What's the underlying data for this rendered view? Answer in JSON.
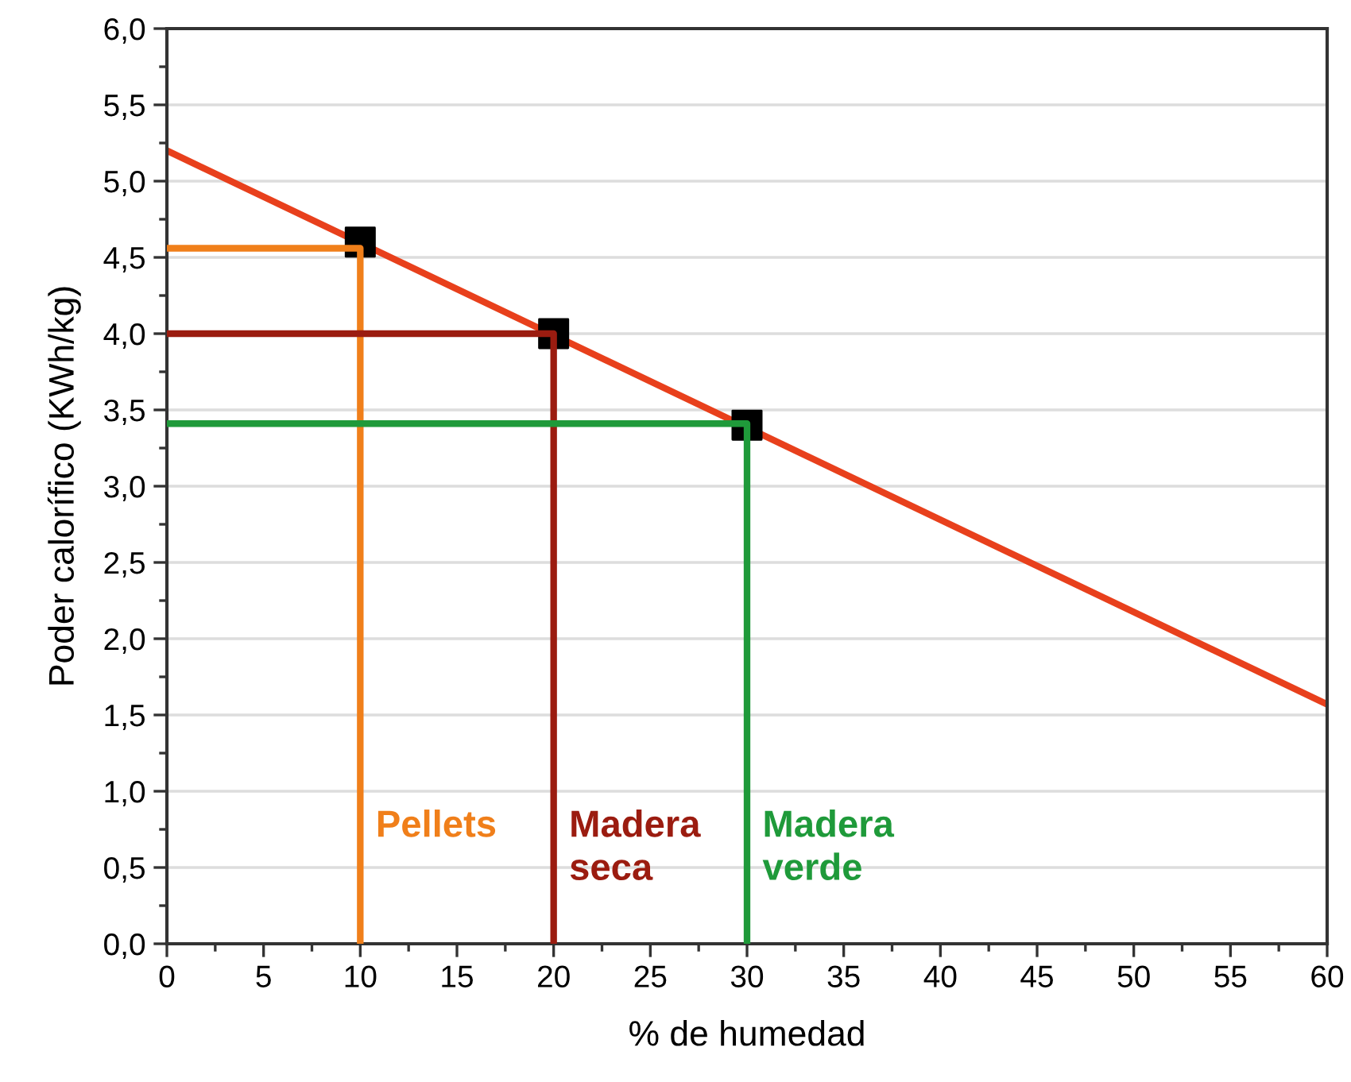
{
  "chart_data": {
    "type": "line",
    "xlabel": "% de humedad",
    "ylabel": "Poder calorífico (KWh/kg)",
    "xlim": [
      0,
      60
    ],
    "ylim": [
      0,
      6
    ],
    "xticks": [
      0,
      5,
      10,
      15,
      20,
      25,
      30,
      35,
      40,
      45,
      50,
      55,
      60
    ],
    "yticks": [
      {
        "value": 0,
        "label": "0,0"
      },
      {
        "value": 0.5,
        "label": "0,5"
      },
      {
        "value": 1,
        "label": "1,0"
      },
      {
        "value": 1.5,
        "label": "1,5"
      },
      {
        "value": 2,
        "label": "2,0"
      },
      {
        "value": 2.5,
        "label": "2,5"
      },
      {
        "value": 3,
        "label": "3,0"
      },
      {
        "value": 3.5,
        "label": "3,5"
      },
      {
        "value": 4,
        "label": "4,0"
      },
      {
        "value": 4.5,
        "label": "4,5"
      },
      {
        "value": 5,
        "label": "5,0"
      },
      {
        "value": 5.5,
        "label": "5,5"
      },
      {
        "value": 6,
        "label": "6,0"
      }
    ],
    "grid": "y",
    "legend": false,
    "series": [
      {
        "name": "Pellets",
        "color": "#f07f1a",
        "x": [
          0,
          10,
          10
        ],
        "values": [
          4.56,
          4.56,
          0
        ]
      },
      {
        "name": "Madera seca",
        "color": "#9b1c10",
        "x": [
          0,
          20,
          20
        ],
        "values": [
          4.0,
          4.0,
          0
        ]
      },
      {
        "name": "Madera verde",
        "color": "#1f9a3a",
        "x": [
          0,
          30,
          30
        ],
        "values": [
          3.41,
          3.41,
          0
        ]
      },
      {
        "type": "line",
        "color": "#e8401c",
        "x": [
          0,
          60
        ],
        "values": [
          5.2,
          1.57
        ]
      },
      {
        "type": "scatter",
        "marker": "square",
        "color": "#000000",
        "x": [
          10,
          20,
          30
        ],
        "values": [
          4.6,
          4.0,
          3.4
        ]
      }
    ]
  }
}
